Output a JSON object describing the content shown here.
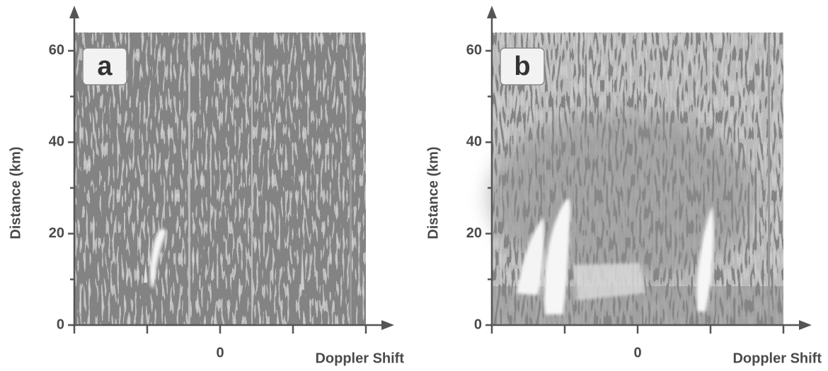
{
  "chart_data": [
    {
      "type": "image",
      "panel_label": "a",
      "ylabel": "Distance (km)",
      "xlabel": "Doppler Shift",
      "ylim": [
        0,
        64
      ],
      "yticks": [
        0,
        20,
        40,
        60
      ],
      "yminor_ticks": [
        10,
        30,
        50
      ],
      "xlim": [
        -2,
        2
      ],
      "xticks": [
        0
      ],
      "xminor_ticks": [
        -2,
        -1,
        1,
        2
      ]
    },
    {
      "type": "image",
      "panel_label": "b",
      "ylabel": "Distance (km)",
      "xlabel": "Doppler Shift",
      "ylim": [
        0,
        64
      ],
      "yticks": [
        0,
        20,
        40,
        60
      ],
      "yminor_ticks": [
        10,
        30,
        50
      ],
      "xlim": [
        -2,
        2
      ],
      "xticks": [
        0
      ],
      "xminor_ticks": [
        -2,
        -1,
        1,
        2
      ]
    }
  ]
}
